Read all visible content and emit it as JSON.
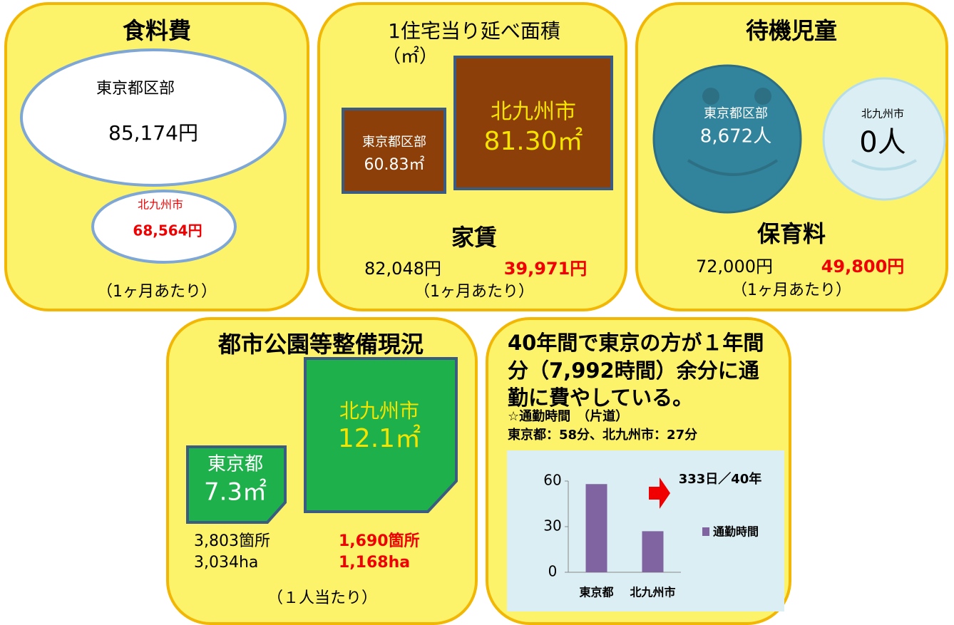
{
  "food": {
    "title": "食料費",
    "tokyo_label": "東京都区部",
    "tokyo_value": "85,174円",
    "kita_label": "北九州市",
    "kita_value": "68,564円",
    "note": "（1ヶ月あたり）"
  },
  "housing": {
    "title": "1住宅当り延べ面積",
    "unit": "（㎡）",
    "tokyo_label": "東京都区部",
    "tokyo_value": "60.83㎡",
    "kita_label": "北九州市",
    "kita_value": "81.30㎡",
    "rent_title": "家賃",
    "rent_tokyo": "82,048円",
    "rent_kita": "39,971円",
    "note": "（1ヶ月あたり）"
  },
  "childcare": {
    "title": "待機児童",
    "tokyo_label": "東京都区部",
    "tokyo_value": "8,672人",
    "kita_label": "北九州市",
    "kita_value": "0人",
    "fee_title": "保育料",
    "fee_tokyo": "72,000円",
    "fee_kita": "49,800円",
    "note": "（1ヶ月あたり）"
  },
  "parks": {
    "title": "都市公園等整備現況",
    "kita_label": "北九州市",
    "kita_value": "12.1㎡",
    "tokyo_label": "東京都",
    "tokyo_value": "7.3㎡",
    "tokyo_count": "3,803箇所",
    "tokyo_area": "3,034ha",
    "kita_count": "1,690箇所",
    "kita_area": "1,168ha",
    "note": "（１人当たり）"
  },
  "commute": {
    "heading": [
      "40年間で東京の方が１年間",
      "分（7,992時間）余分に通",
      "勤に費やしている。"
    ],
    "sub": "☆通勤時間　（片道）",
    "detail": "東京都：58分、北九州市：27分"
  },
  "chart_data": {
    "type": "bar",
    "categories": [
      "東京都",
      "北九州市"
    ],
    "series": [
      {
        "name": "通勤時間",
        "color": "#8064a2",
        "values": [
          58,
          27
        ]
      }
    ],
    "ylim": [
      0,
      60
    ],
    "yticks": [
      0,
      30,
      60
    ],
    "annotation": "333日／40年"
  }
}
